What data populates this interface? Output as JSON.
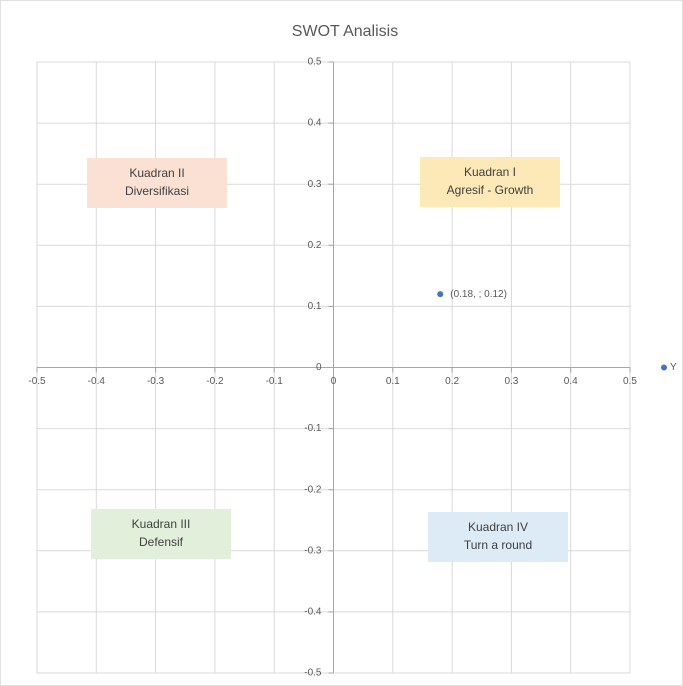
{
  "chart_data": {
    "type": "scatter",
    "title": "SWOT Analisis",
    "series": [
      {
        "name": "Y",
        "color": "#4472c4",
        "x": [
          0.18
        ],
        "values": [
          0.12
        ],
        "value_labels": [
          "(0.18, ; 0.12)"
        ]
      }
    ],
    "xlim": [
      -0.5,
      0.5
    ],
    "xticks": [
      -0.5,
      -0.4,
      -0.3,
      -0.2,
      -0.1,
      0,
      0.1,
      0.2,
      0.3,
      0.4,
      0.5
    ],
    "ylim": [
      -0.5,
      0.5
    ],
    "yticks": [
      -0.5,
      -0.4,
      -0.3,
      -0.2,
      -0.1,
      0,
      0.1,
      0.2,
      0.3,
      0.4,
      0.5
    ],
    "grid": true,
    "legend": "right",
    "annotations": [
      {
        "lines": [
          "Kuadran I",
          "Agresif - Growth"
        ],
        "color": "#fde9b8"
      },
      {
        "lines": [
          "Kuadran II",
          "Diversifikasi"
        ],
        "color": "#fbe1d4"
      },
      {
        "lines": [
          "Kuadran III",
          "Defensif"
        ],
        "color": "#e2efda"
      },
      {
        "lines": [
          "Kuadran IV",
          "Turn a round"
        ],
        "color": "#ddebf7"
      }
    ]
  }
}
